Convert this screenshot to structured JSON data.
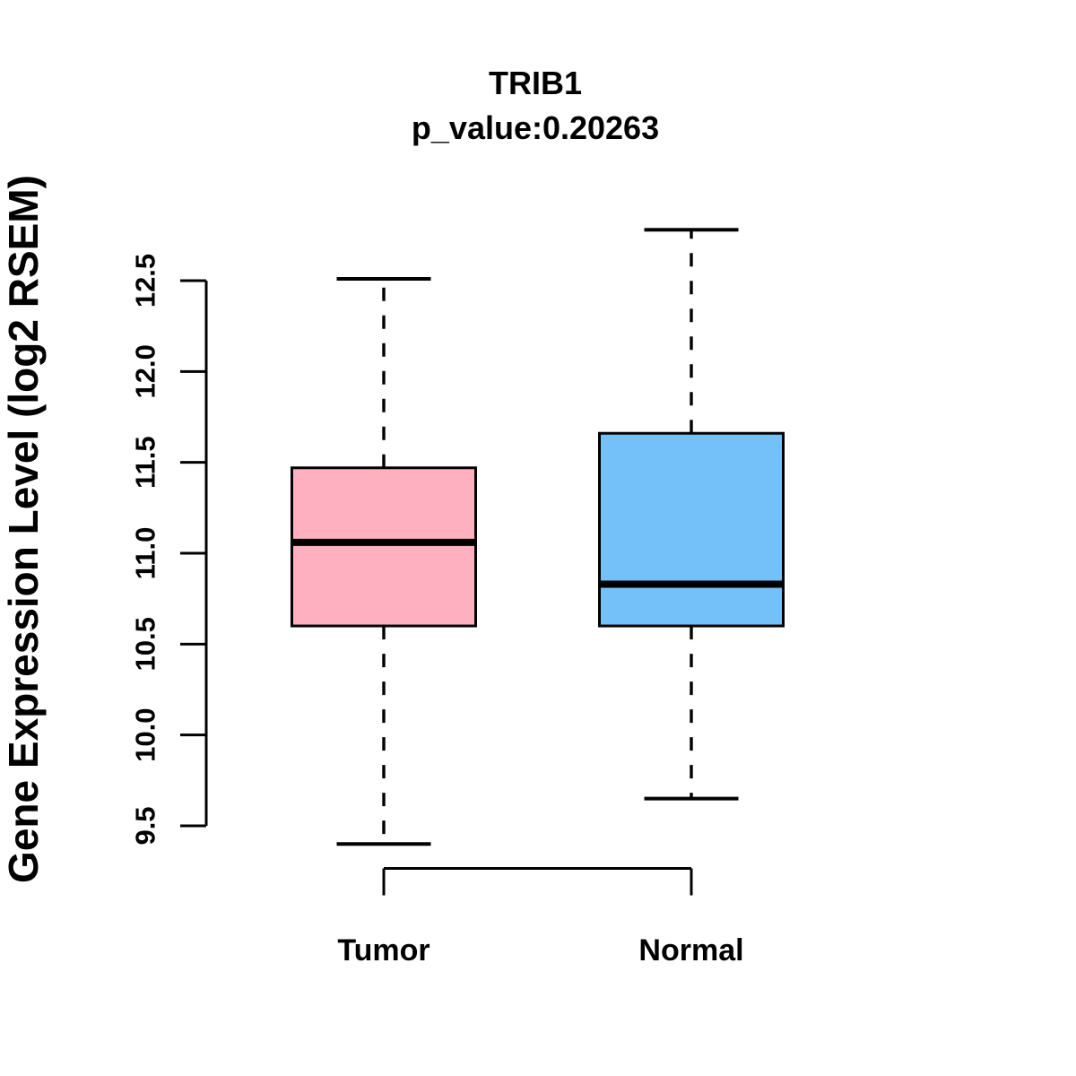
{
  "figure": {
    "background": "#FFFFFF"
  },
  "title": {
    "gene": "TRIB1",
    "p_value": "p_value:0.20263"
  },
  "y_axis": {
    "label": "Gene Expression Level (log2 RSEM)",
    "tick_labels": [
      "9.5",
      "10.0",
      "10.5",
      "11.0",
      "11.5",
      "12.0",
      "12.5"
    ],
    "range": [
      9.5,
      12.5
    ]
  },
  "chart_data": {
    "type": "boxplot",
    "title": "TRIB1",
    "subtitle": "p_value:0.20263",
    "ylabel": "Gene Expression Level (log2 RSEM)",
    "categories": [
      "Tumor",
      "Normal"
    ],
    "ylim": [
      9.5,
      12.5
    ],
    "ytick_interval": 0.5,
    "grid": false,
    "legend": "none",
    "whisker_linetype": "dashed",
    "series": [
      {
        "name": "Tumor",
        "fill": "#FFB0C0",
        "stroke": "#000000",
        "whisker_low": 9.4,
        "q1": 10.6,
        "median": 11.06,
        "q3": 11.47,
        "whisker_high": 12.51,
        "outliers": []
      },
      {
        "name": "Normal",
        "fill": "#74C0F8",
        "stroke": "#000000",
        "whisker_low": 9.65,
        "q1": 10.6,
        "median": 10.83,
        "q3": 11.66,
        "whisker_high": 12.78,
        "outliers": []
      }
    ]
  }
}
